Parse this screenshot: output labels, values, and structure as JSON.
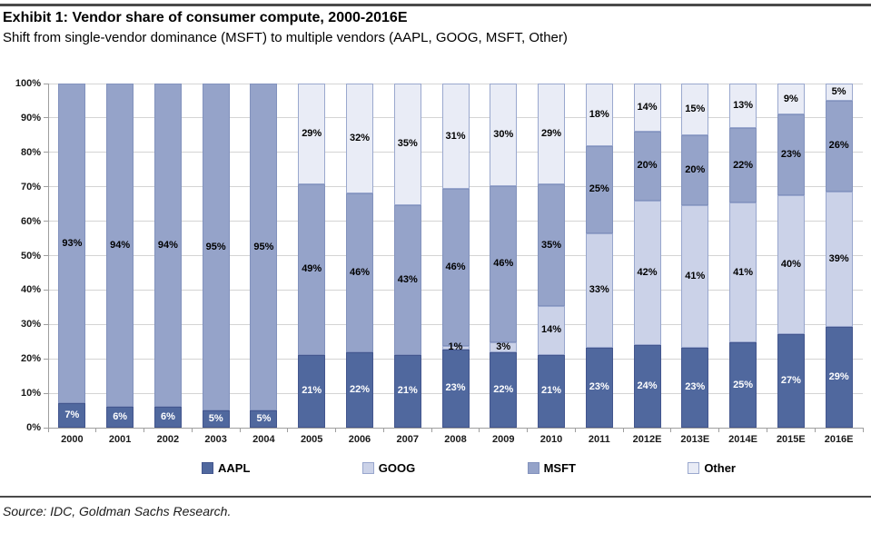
{
  "header": {
    "title": "Exhibit 1: Vendor share of consumer compute, 2000-2016E",
    "subtitle": "Shift from single-vendor dominance (MSFT) to multiple vendors (AAPL, GOOG, MSFT, Other)"
  },
  "source": "Source: IDC, Goldman Sachs Research.",
  "colors": {
    "grid": "#d4d4d4",
    "axis": "#9e9e9e",
    "tick_label": "#1a1a1a",
    "aapl": "#50689e",
    "goog": "#cbd2e8",
    "msft": "#95a3c9",
    "other": "#e9ecf6"
  },
  "chart_data": {
    "type": "bar",
    "stacked": true,
    "title": "Exhibit 1: Vendor share of consumer compute, 2000-2016E",
    "xlabel": "",
    "ylabel": "",
    "ylim": [
      0,
      100
    ],
    "grid": "horizontal",
    "legend_position": "bottom",
    "categories": [
      "2000",
      "2001",
      "2002",
      "2003",
      "2004",
      "2005",
      "2006",
      "2007",
      "2008",
      "2009",
      "2010",
      "2011",
      "2012E",
      "2013E",
      "2014E",
      "2015E",
      "2016E"
    ],
    "y_ticks": [
      "0%",
      "10%",
      "20%",
      "30%",
      "40%",
      "50%",
      "60%",
      "70%",
      "80%",
      "90%",
      "100%"
    ],
    "series": [
      {
        "name": "AAPL",
        "color": "#50689e",
        "border": "#43568e",
        "label_color": "#ffffff",
        "values": [
          7,
          6,
          6,
          5,
          5,
          21,
          22,
          21,
          23,
          22,
          21,
          23,
          24,
          23,
          25,
          27,
          29
        ]
      },
      {
        "name": "GOOG",
        "color": "#cbd2e8",
        "border": "#98a6cd",
        "label_color": "#000000",
        "values": [
          0,
          0,
          0,
          0,
          0,
          0,
          0,
          0,
          1,
          3,
          14,
          33,
          42,
          41,
          41,
          40,
          39
        ]
      },
      {
        "name": "MSFT",
        "color": "#95a3c9",
        "border": "#8292bd",
        "label_color": "#000000",
        "values": [
          93,
          94,
          94,
          95,
          95,
          49,
          46,
          43,
          46,
          46,
          35,
          25,
          20,
          20,
          22,
          23,
          26
        ]
      },
      {
        "name": "Other",
        "color": "#e9ecf6",
        "border": "#9aa8ce",
        "label_color": "#000000",
        "values": [
          0,
          0,
          0,
          0,
          0,
          29,
          32,
          35,
          31,
          30,
          29,
          18,
          14,
          15,
          13,
          9,
          5
        ]
      }
    ]
  }
}
